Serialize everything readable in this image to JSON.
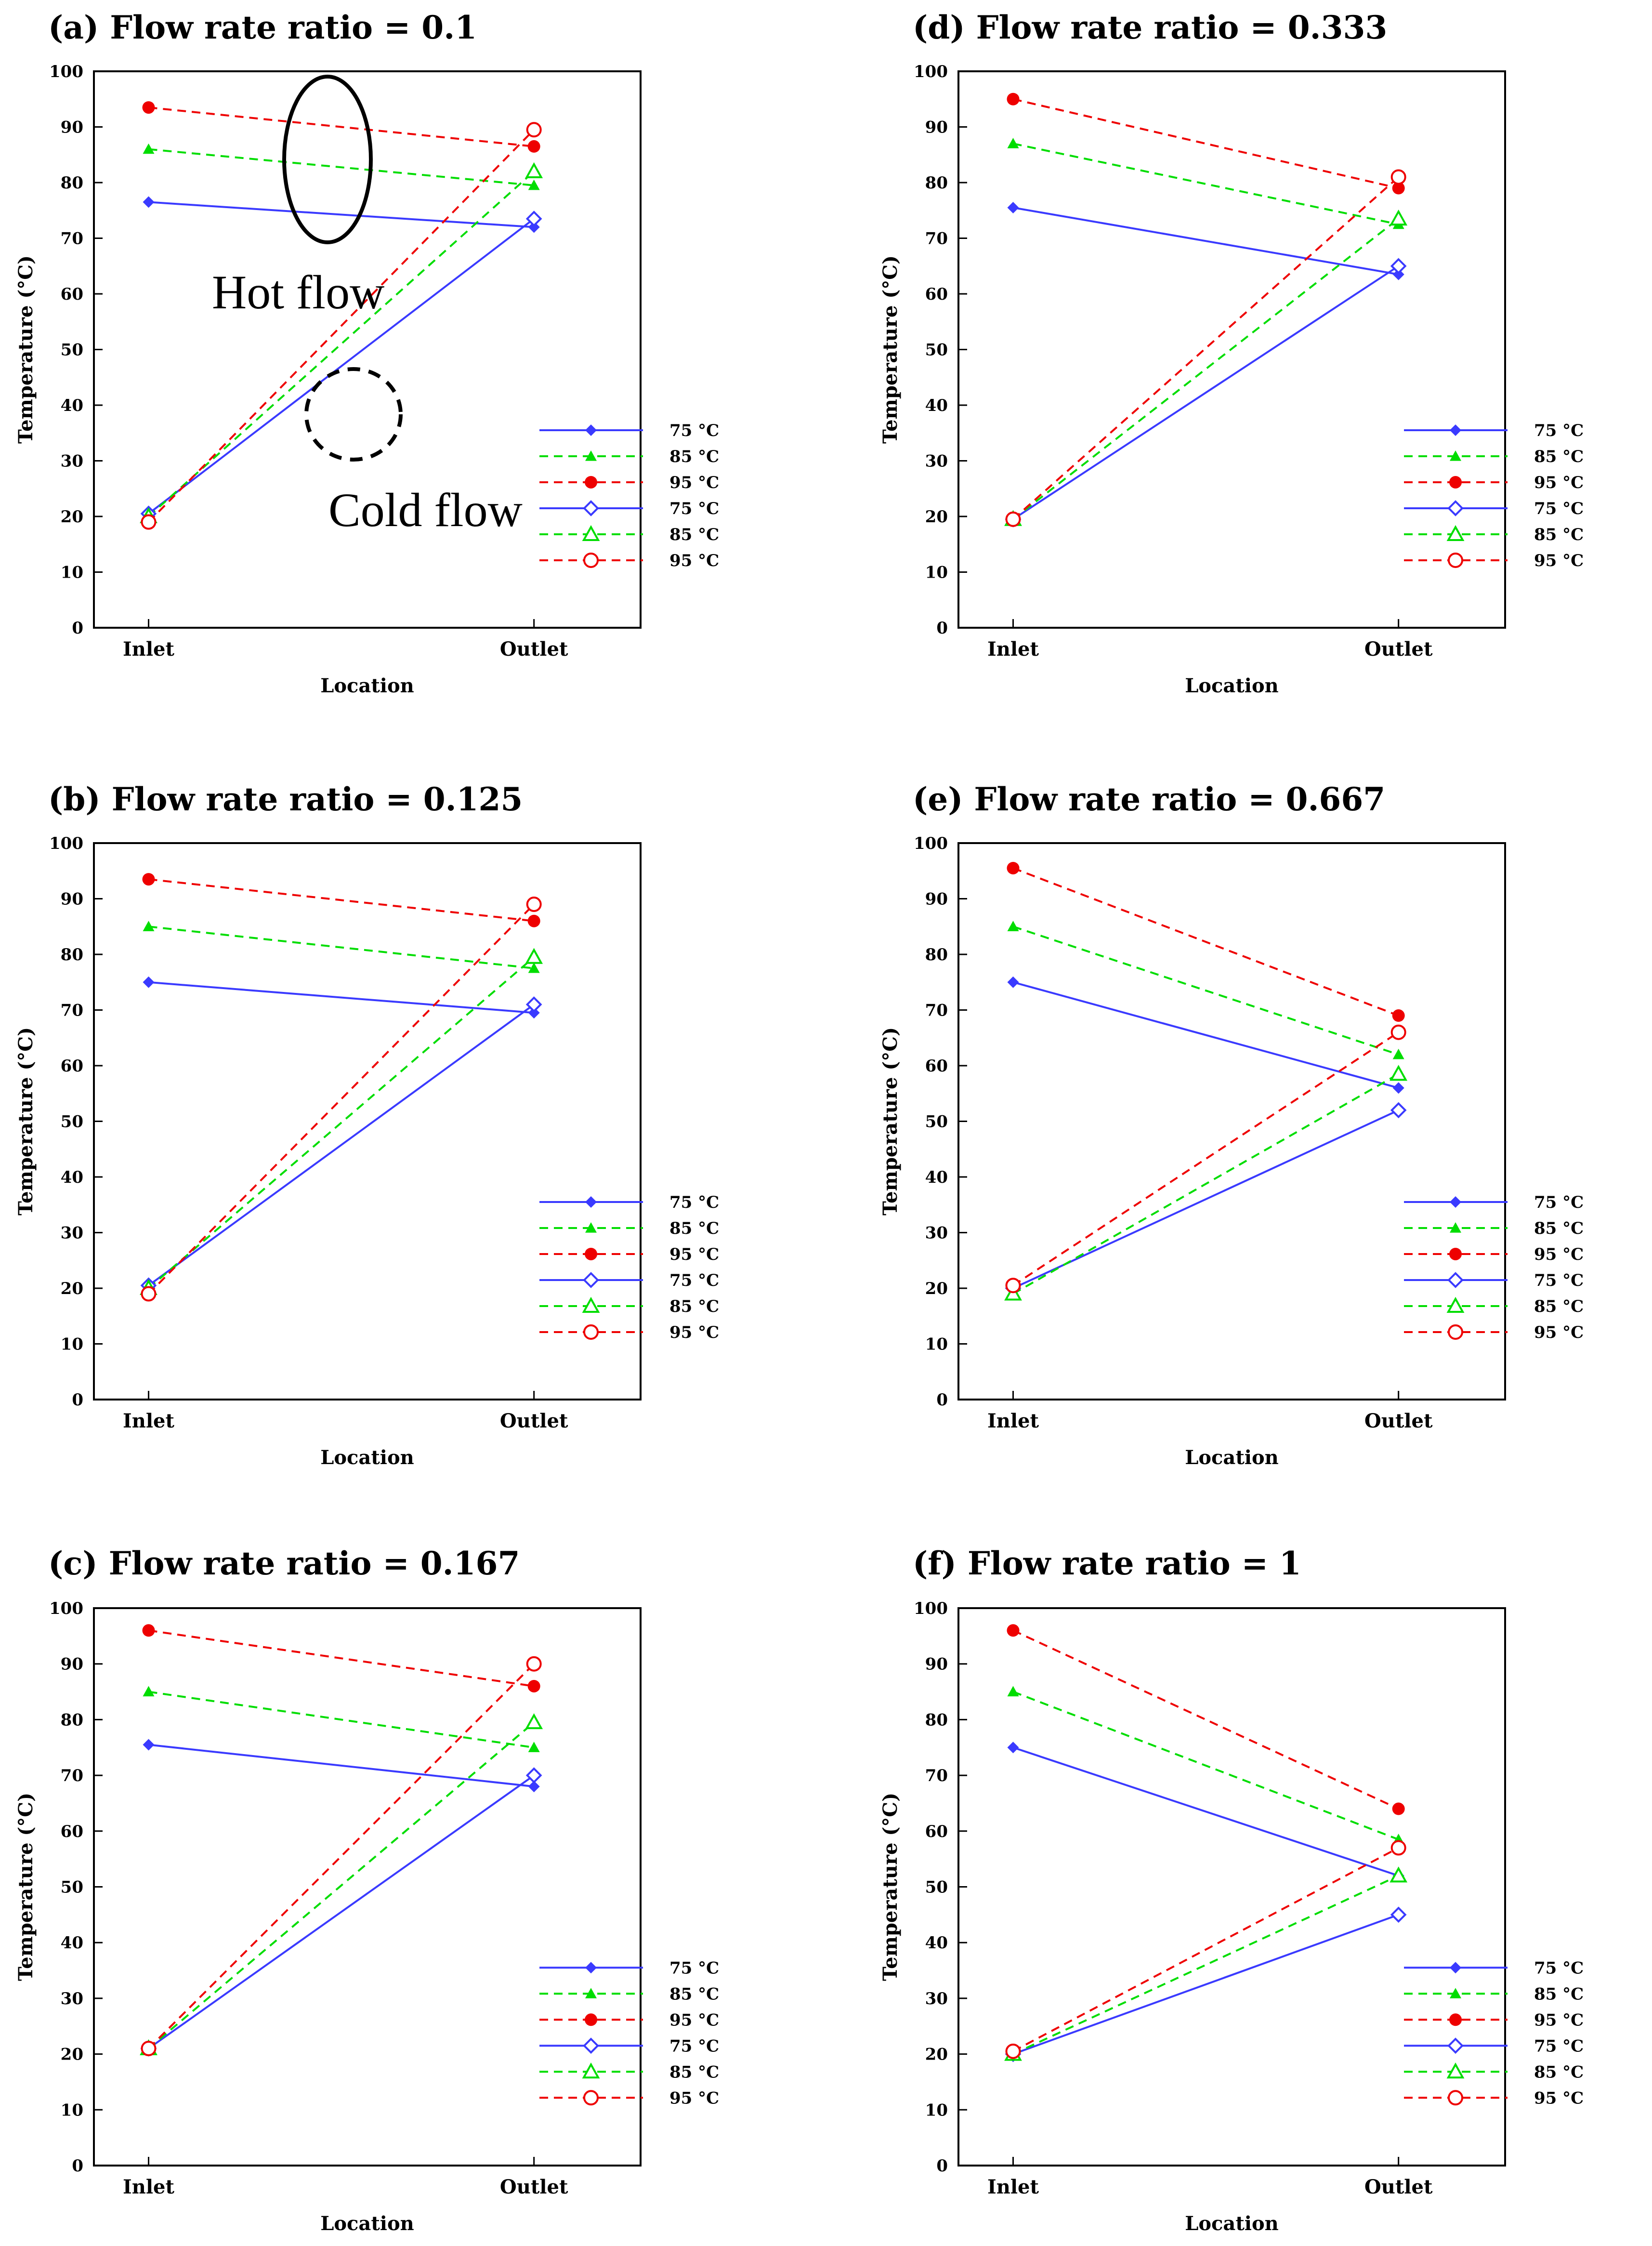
{
  "figure": {
    "y_label": "Temperature (°C)",
    "x_label": "Location"
  },
  "chart_data": [
    {
      "type": "line",
      "panel": "a",
      "title": "(a) Flow rate ratio = 0.1",
      "categories": [
        "Inlet",
        "Outlet"
      ],
      "xlabel": "Location",
      "ylabel": "Temperature (°C)",
      "ylim": [
        0,
        100
      ],
      "yticks": [
        0,
        10,
        20,
        30,
        40,
        50,
        60,
        70,
        80,
        90,
        100
      ],
      "series": [
        {
          "name": "75 °C",
          "flow": "hot",
          "color": "#3a3aff",
          "dash": "solid",
          "marker": "diamond-filled",
          "values": [
            76.5,
            72
          ]
        },
        {
          "name": "85 °C",
          "flow": "hot",
          "color": "#00dd00",
          "dash": "dashed",
          "marker": "triangle-filled",
          "values": [
            86,
            79.5
          ]
        },
        {
          "name": "95 °C",
          "flow": "hot",
          "color": "#ee0000",
          "dash": "dashed",
          "marker": "circle-filled",
          "values": [
            93.5,
            86.5
          ]
        },
        {
          "name": "75 °C",
          "flow": "cold",
          "color": "#3a3aff",
          "dash": "solid",
          "marker": "diamond-open",
          "values": [
            20.5,
            73.5
          ]
        },
        {
          "name": "85 °C",
          "flow": "cold",
          "color": "#00dd00",
          "dash": "dashed",
          "marker": "triangle-open",
          "values": [
            20,
            82
          ]
        },
        {
          "name": "95 °C",
          "flow": "cold",
          "color": "#ee0000",
          "dash": "dashed",
          "marker": "circle-open",
          "values": [
            19,
            89.5
          ]
        }
      ],
      "annotations": [
        "Hot flow",
        "Cold flow"
      ]
    },
    {
      "type": "line",
      "panel": "b",
      "title": "(b) Flow rate ratio = 0.125",
      "categories": [
        "Inlet",
        "Outlet"
      ],
      "xlabel": "Location",
      "ylabel": "Temperature (°C)",
      "ylim": [
        0,
        100
      ],
      "yticks": [
        0,
        10,
        20,
        30,
        40,
        50,
        60,
        70,
        80,
        90,
        100
      ],
      "series": [
        {
          "name": "75 °C",
          "flow": "hot",
          "color": "#3a3aff",
          "dash": "solid",
          "marker": "diamond-filled",
          "values": [
            75,
            69.5
          ]
        },
        {
          "name": "85 °C",
          "flow": "hot",
          "color": "#00dd00",
          "dash": "dashed",
          "marker": "triangle-filled",
          "values": [
            85,
            77.5
          ]
        },
        {
          "name": "95 °C",
          "flow": "hot",
          "color": "#ee0000",
          "dash": "dashed",
          "marker": "circle-filled",
          "values": [
            93.5,
            86
          ]
        },
        {
          "name": "75 °C",
          "flow": "cold",
          "color": "#3a3aff",
          "dash": "solid",
          "marker": "diamond-open",
          "values": [
            20.5,
            71
          ]
        },
        {
          "name": "85 °C",
          "flow": "cold",
          "color": "#00dd00",
          "dash": "dashed",
          "marker": "triangle-open",
          "values": [
            20,
            79.5
          ]
        },
        {
          "name": "95 °C",
          "flow": "cold",
          "color": "#ee0000",
          "dash": "dashed",
          "marker": "circle-open",
          "values": [
            19,
            89
          ]
        }
      ],
      "annotations": []
    },
    {
      "type": "line",
      "panel": "c",
      "title": "(c) Flow rate ratio = 0.167",
      "categories": [
        "Inlet",
        "Outlet"
      ],
      "xlabel": "Location",
      "ylabel": "Temperature (°C)",
      "ylim": [
        0,
        100
      ],
      "yticks": [
        0,
        10,
        20,
        30,
        40,
        50,
        60,
        70,
        80,
        90,
        100
      ],
      "series": [
        {
          "name": "75 °C",
          "flow": "hot",
          "color": "#3a3aff",
          "dash": "solid",
          "marker": "diamond-filled",
          "values": [
            75.5,
            68
          ]
        },
        {
          "name": "85 °C",
          "flow": "hot",
          "color": "#00dd00",
          "dash": "dashed",
          "marker": "triangle-filled",
          "values": [
            85,
            75
          ]
        },
        {
          "name": "95 °C",
          "flow": "hot",
          "color": "#ee0000",
          "dash": "dashed",
          "marker": "circle-filled",
          "values": [
            96,
            86
          ]
        },
        {
          "name": "75 °C",
          "flow": "cold",
          "color": "#3a3aff",
          "dash": "solid",
          "marker": "diamond-open",
          "values": [
            21,
            70
          ]
        },
        {
          "name": "85 °C",
          "flow": "cold",
          "color": "#00dd00",
          "dash": "dashed",
          "marker": "triangle-open",
          "values": [
            21,
            79.5
          ]
        },
        {
          "name": "95 °C",
          "flow": "cold",
          "color": "#ee0000",
          "dash": "dashed",
          "marker": "circle-open",
          "values": [
            21,
            90
          ]
        }
      ],
      "annotations": []
    },
    {
      "type": "line",
      "panel": "d",
      "title": "(d) Flow rate ratio = 0.333",
      "categories": [
        "Inlet",
        "Outlet"
      ],
      "xlabel": "Location",
      "ylabel": "Temperature (°C)",
      "ylim": [
        0,
        100
      ],
      "yticks": [
        0,
        10,
        20,
        30,
        40,
        50,
        60,
        70,
        80,
        90,
        100
      ],
      "series": [
        {
          "name": "75 °C",
          "flow": "hot",
          "color": "#3a3aff",
          "dash": "solid",
          "marker": "diamond-filled",
          "values": [
            75.5,
            63.5
          ]
        },
        {
          "name": "85 °C",
          "flow": "hot",
          "color": "#00dd00",
          "dash": "dashed",
          "marker": "triangle-filled",
          "values": [
            87,
            72.5
          ]
        },
        {
          "name": "95 °C",
          "flow": "hot",
          "color": "#ee0000",
          "dash": "dashed",
          "marker": "circle-filled",
          "values": [
            95,
            79
          ]
        },
        {
          "name": "75 °C",
          "flow": "cold",
          "color": "#3a3aff",
          "dash": "solid",
          "marker": "diamond-open",
          "values": [
            19.5,
            65
          ]
        },
        {
          "name": "85 °C",
          "flow": "cold",
          "color": "#00dd00",
          "dash": "dashed",
          "marker": "triangle-open",
          "values": [
            19.5,
            73.5
          ]
        },
        {
          "name": "95 °C",
          "flow": "cold",
          "color": "#ee0000",
          "dash": "dashed",
          "marker": "circle-open",
          "values": [
            19.5,
            81
          ]
        }
      ],
      "annotations": []
    },
    {
      "type": "line",
      "panel": "e",
      "title": "(e) Flow rate ratio = 0.667",
      "categories": [
        "Inlet",
        "Outlet"
      ],
      "xlabel": "Location",
      "ylabel": "Temperature (°C)",
      "ylim": [
        0,
        100
      ],
      "yticks": [
        0,
        10,
        20,
        30,
        40,
        50,
        60,
        70,
        80,
        90,
        100
      ],
      "series": [
        {
          "name": "75 °C",
          "flow": "hot",
          "color": "#3a3aff",
          "dash": "solid",
          "marker": "diamond-filled",
          "values": [
            75,
            56
          ]
        },
        {
          "name": "85 °C",
          "flow": "hot",
          "color": "#00dd00",
          "dash": "dashed",
          "marker": "triangle-filled",
          "values": [
            85,
            62
          ]
        },
        {
          "name": "95 °C",
          "flow": "hot",
          "color": "#ee0000",
          "dash": "dashed",
          "marker": "circle-filled",
          "values": [
            95.5,
            69
          ]
        },
        {
          "name": "75 °C",
          "flow": "cold",
          "color": "#3a3aff",
          "dash": "solid",
          "marker": "diamond-open",
          "values": [
            20,
            52
          ]
        },
        {
          "name": "85 °C",
          "flow": "cold",
          "color": "#00dd00",
          "dash": "dashed",
          "marker": "triangle-open",
          "values": [
            19,
            58.5
          ]
        },
        {
          "name": "95 °C",
          "flow": "cold",
          "color": "#ee0000",
          "dash": "dashed",
          "marker": "circle-open",
          "values": [
            20.5,
            66
          ]
        }
      ],
      "annotations": []
    },
    {
      "type": "line",
      "panel": "f",
      "title": "(f) Flow rate ratio = 1",
      "categories": [
        "Inlet",
        "Outlet"
      ],
      "xlabel": "Location",
      "ylabel": "Temperature (°C)",
      "ylim": [
        0,
        100
      ],
      "yticks": [
        0,
        10,
        20,
        30,
        40,
        50,
        60,
        70,
        80,
        90,
        100
      ],
      "series": [
        {
          "name": "75 °C",
          "flow": "hot",
          "color": "#3a3aff",
          "dash": "solid",
          "marker": "diamond-filled",
          "values": [
            75,
            52
          ]
        },
        {
          "name": "85 °C",
          "flow": "hot",
          "color": "#00dd00",
          "dash": "dashed",
          "marker": "triangle-filled",
          "values": [
            85,
            58.5
          ]
        },
        {
          "name": "95 °C",
          "flow": "hot",
          "color": "#ee0000",
          "dash": "dashed",
          "marker": "circle-filled",
          "values": [
            96,
            64
          ]
        },
        {
          "name": "75 °C",
          "flow": "cold",
          "color": "#3a3aff",
          "dash": "solid",
          "marker": "diamond-open",
          "values": [
            20,
            45
          ]
        },
        {
          "name": "85 °C",
          "flow": "cold",
          "color": "#00dd00",
          "dash": "dashed",
          "marker": "triangle-open",
          "values": [
            20,
            52
          ]
        },
        {
          "name": "95 °C",
          "flow": "cold",
          "color": "#ee0000",
          "dash": "dashed",
          "marker": "circle-open",
          "values": [
            20.5,
            57
          ]
        }
      ],
      "annotations": []
    }
  ]
}
